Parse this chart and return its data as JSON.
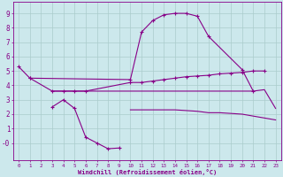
{
  "background_color": "#cce8ec",
  "grid_color": "#aacccc",
  "line_color": "#880088",
  "xlabel": "Windchill (Refroidissement éolien,°C)",
  "xlim": [
    -0.5,
    23.5
  ],
  "ylim": [
    -1.2,
    9.8
  ],
  "yticks": [
    0,
    1,
    2,
    3,
    4,
    5,
    6,
    7,
    8,
    9
  ],
  "ytick_labels": [
    "-0",
    "1",
    "2",
    "3",
    "4",
    "5",
    "6",
    "7",
    "8",
    "9"
  ],
  "xticks": [
    0,
    1,
    2,
    3,
    4,
    5,
    6,
    7,
    8,
    9,
    10,
    11,
    12,
    13,
    14,
    15,
    16,
    17,
    18,
    19,
    20,
    21,
    22,
    23
  ],
  "curve1_x": [
    0,
    1,
    10,
    11,
    12,
    13,
    14,
    15,
    16,
    17,
    20,
    21
  ],
  "curve1_y": [
    5.3,
    4.5,
    4.4,
    7.7,
    8.5,
    8.9,
    9.0,
    9.0,
    8.8,
    7.4,
    5.1,
    3.6
  ],
  "curve2_x": [
    1,
    3,
    4,
    5,
    6,
    10,
    11,
    12,
    13,
    14,
    15,
    16,
    17,
    18,
    19,
    20,
    21,
    22
  ],
  "curve2_y": [
    4.5,
    3.6,
    3.6,
    3.6,
    3.6,
    4.2,
    4.2,
    4.3,
    4.4,
    4.5,
    4.6,
    4.65,
    4.7,
    4.8,
    4.85,
    4.9,
    5.0,
    5.0
  ],
  "curve3_x": [
    3,
    4,
    21,
    22,
    23
  ],
  "curve3_y": [
    3.6,
    3.6,
    3.6,
    3.7,
    2.4
  ],
  "curve4_x": [
    10,
    11,
    12,
    13,
    14,
    15,
    16,
    17,
    18,
    19,
    20,
    23
  ],
  "curve4_y": [
    2.3,
    2.3,
    2.3,
    2.3,
    2.3,
    2.25,
    2.2,
    2.1,
    2.1,
    2.05,
    2.0,
    1.6
  ],
  "curve5_x": [
    3,
    4,
    5,
    6,
    7,
    8,
    9
  ],
  "curve5_y": [
    2.5,
    3.0,
    2.4,
    0.4,
    0.0,
    -0.4,
    -0.35
  ]
}
